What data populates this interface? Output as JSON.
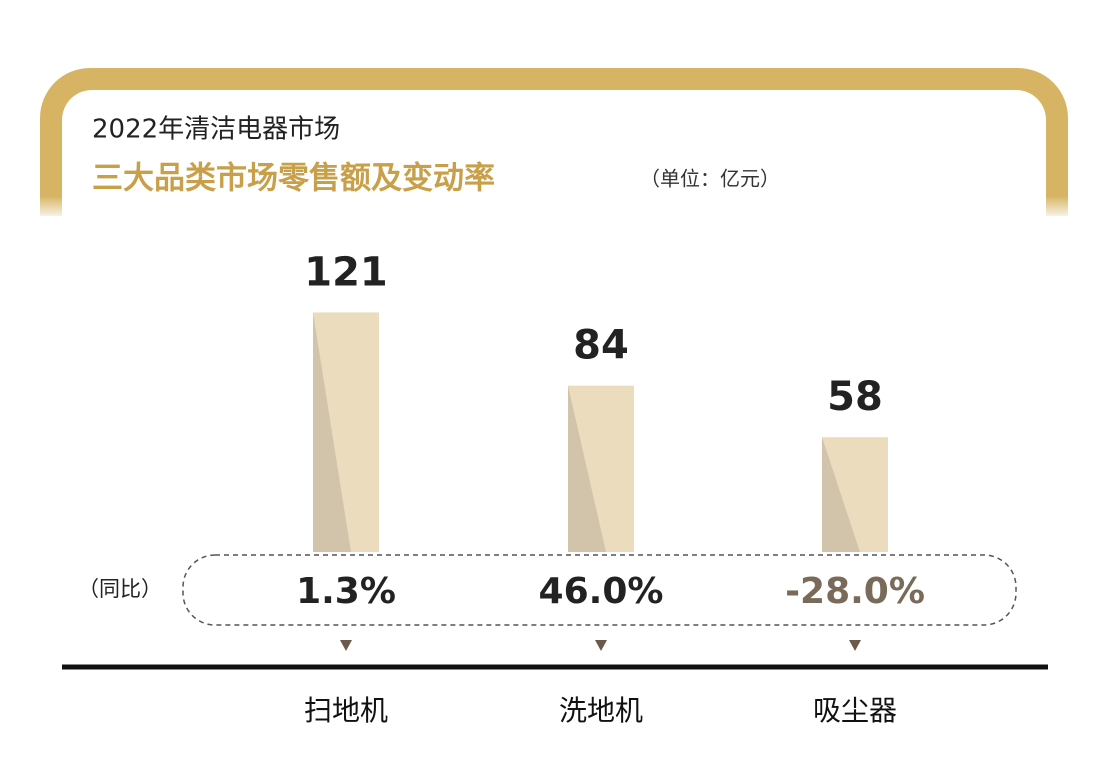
{
  "chart_data": {
    "type": "bar",
    "title": "2022年清洁电器市场",
    "subtitle": "三大品类市场零售额及变动率",
    "unit": "（单位：亿元）",
    "categories": [
      "扫地机",
      "洗地机",
      "吸尘器"
    ],
    "values": [
      121,
      84,
      58
    ],
    "color": "#ecdcbe",
    "change": {
      "label": "（同比）",
      "values": [
        1.3,
        46.0,
        -28.0
      ],
      "value_labels": [
        "1.3%",
        "46.0%",
        "-28.0%"
      ]
    }
  }
}
